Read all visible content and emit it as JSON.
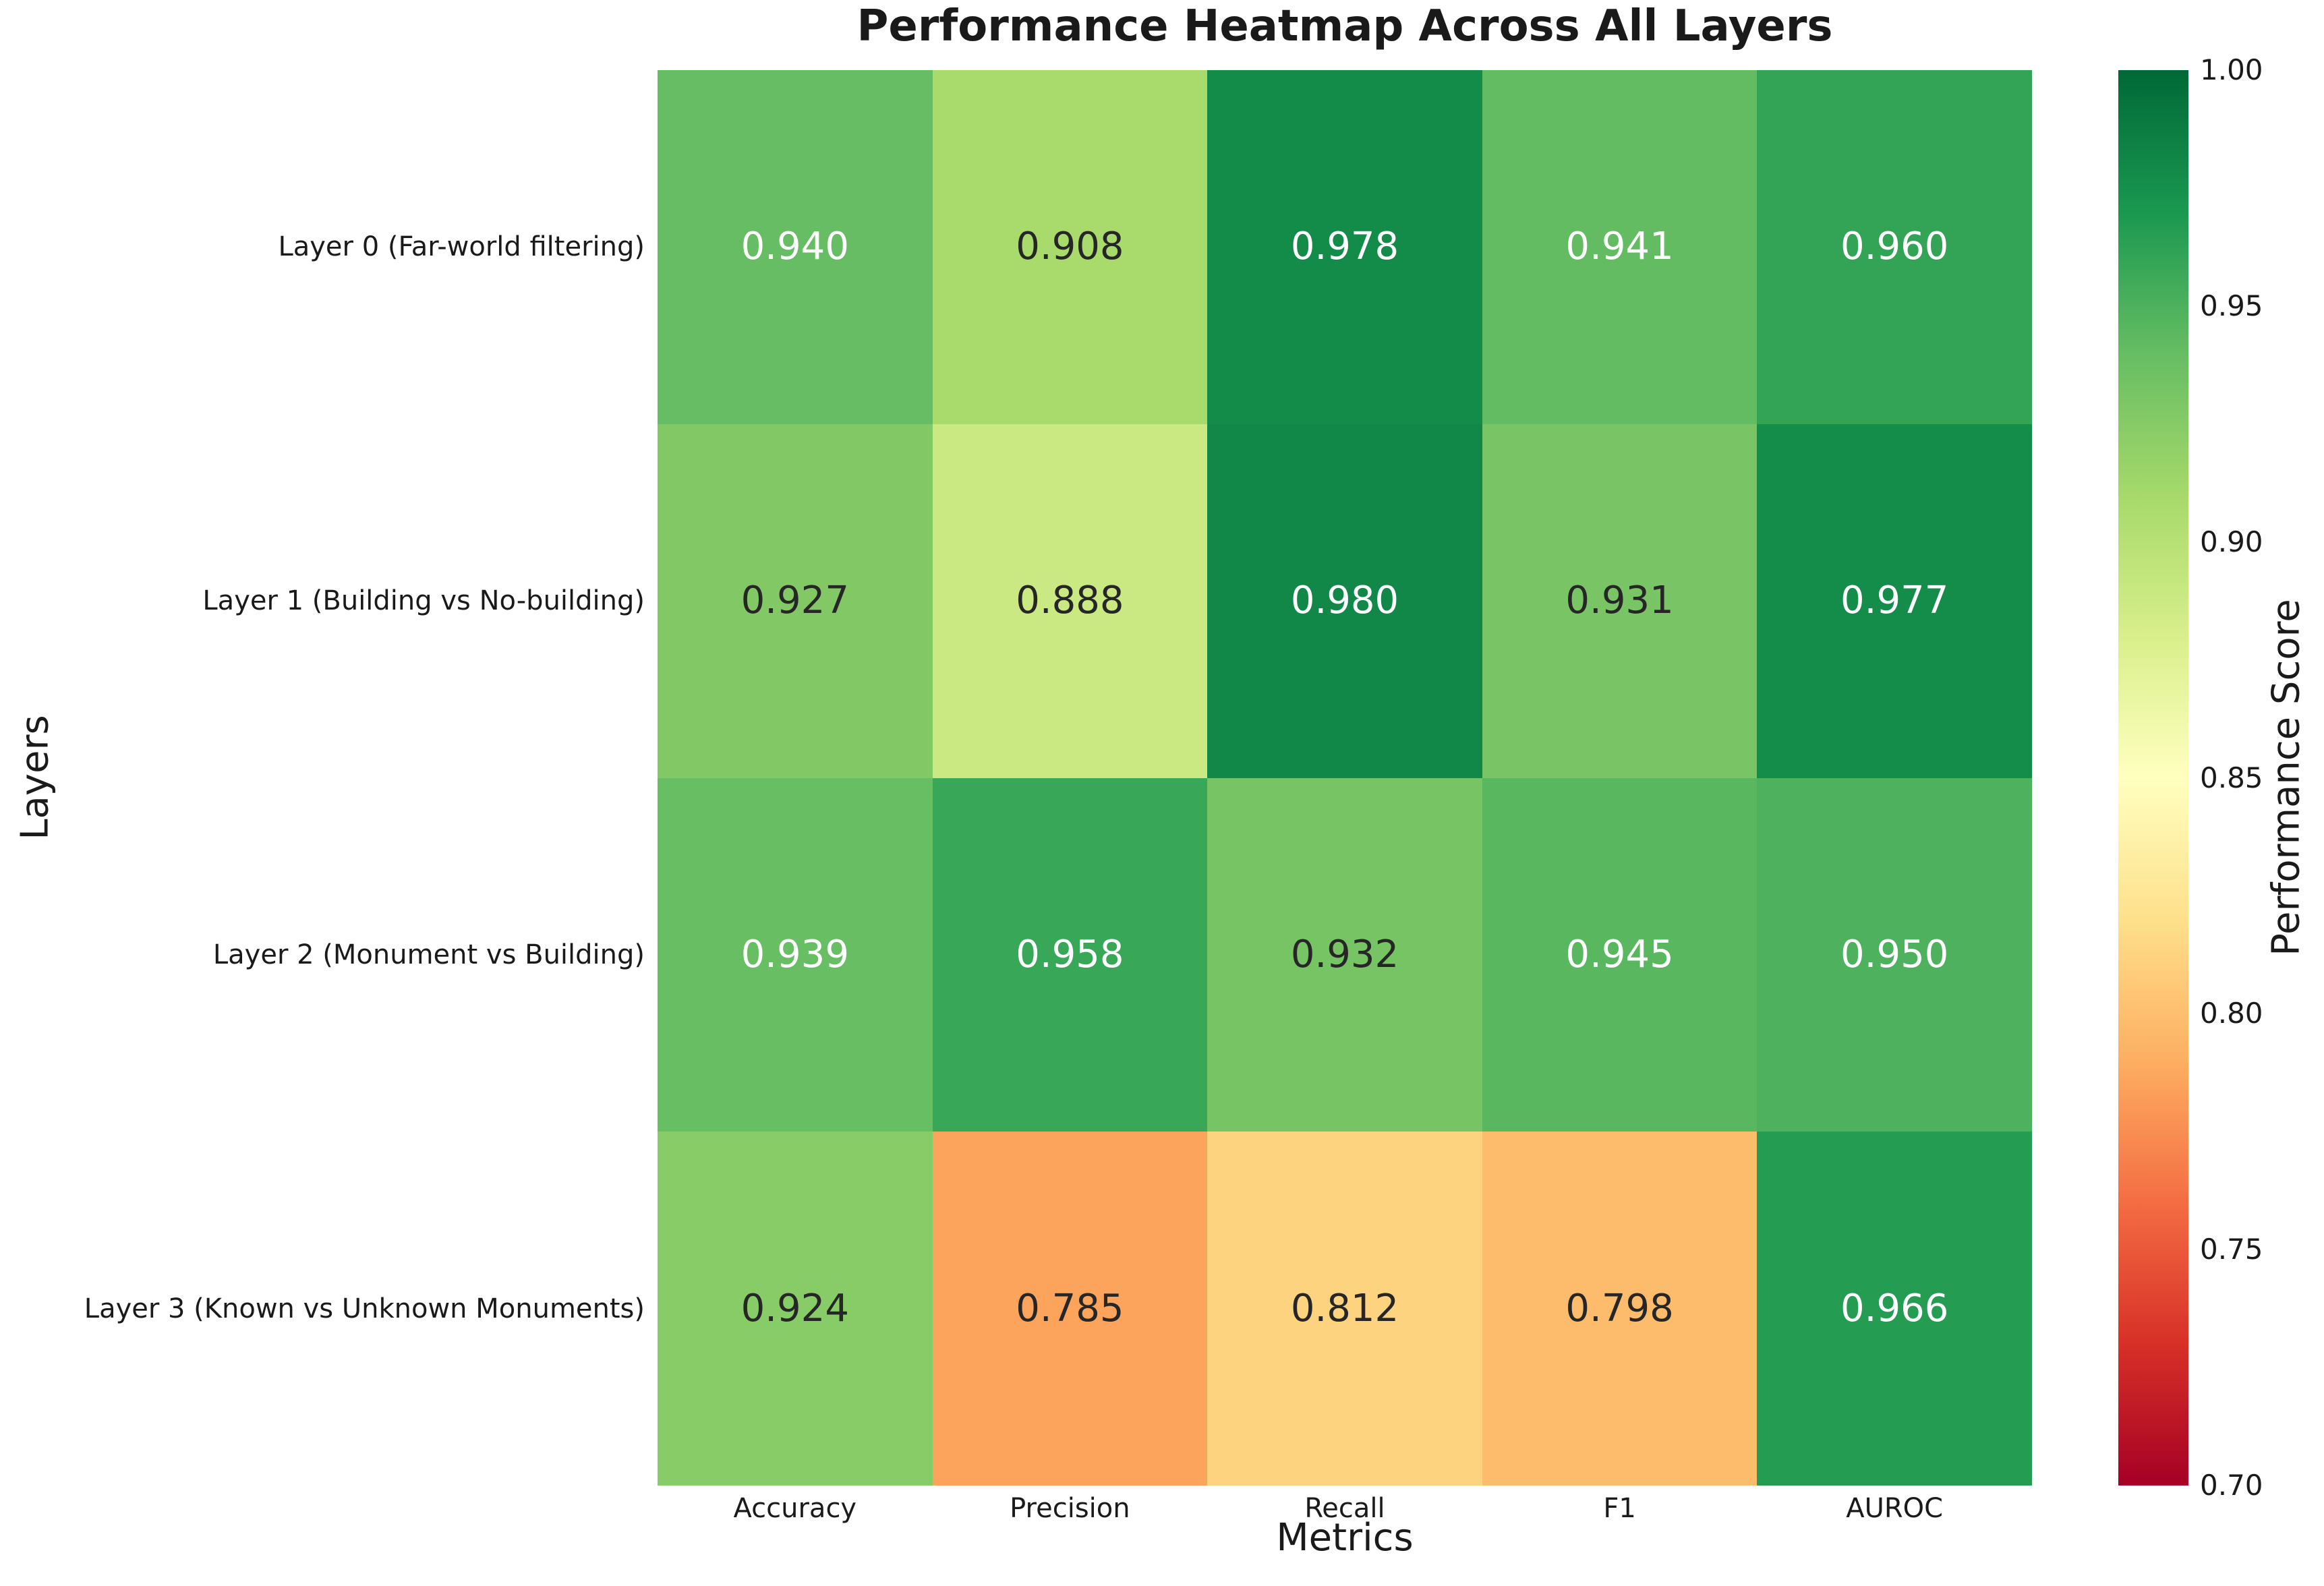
{
  "title": "Performance Heatmap Across All Layers",
  "chart_data": {
    "type": "heatmap",
    "title": "Performance Heatmap Across All Layers",
    "xlabel": "Metrics",
    "ylabel": "Layers",
    "columns": [
      "Accuracy",
      "Precision",
      "Recall",
      "F1",
      "AUROC"
    ],
    "rows": [
      "Layer 0 (Far-world filtering)",
      "Layer 1 (Building vs No-building)",
      "Layer 2 (Monument vs Building)",
      "Layer 3 (Known vs Unknown Monuments)"
    ],
    "values": [
      [
        0.94,
        0.908,
        0.978,
        0.941,
        0.96
      ],
      [
        0.927,
        0.888,
        0.98,
        0.931,
        0.977
      ],
      [
        0.939,
        0.958,
        0.932,
        0.945,
        0.95
      ],
      [
        0.924,
        0.785,
        0.812,
        0.798,
        0.966
      ]
    ],
    "value_decimals": 3,
    "annotation_text_colors": {
      "light": "#FFFFFF",
      "dark": "#262626"
    },
    "grid": false,
    "colorbar": {
      "label": "Performance Score",
      "vmin": 0.7,
      "vmax": 1.0,
      "ticks": [
        0.7,
        0.75,
        0.8,
        0.85,
        0.9,
        0.95,
        1.0
      ],
      "tick_decimals": 2,
      "colormap_name": "RdYlGn",
      "colormap_stops": [
        "#A50026",
        "#D73027",
        "#F46D43",
        "#FDAE61",
        "#FEE08B",
        "#FFFFBF",
        "#D9EF8B",
        "#A6D96A",
        "#66BD63",
        "#1A9850",
        "#006837"
      ]
    }
  }
}
